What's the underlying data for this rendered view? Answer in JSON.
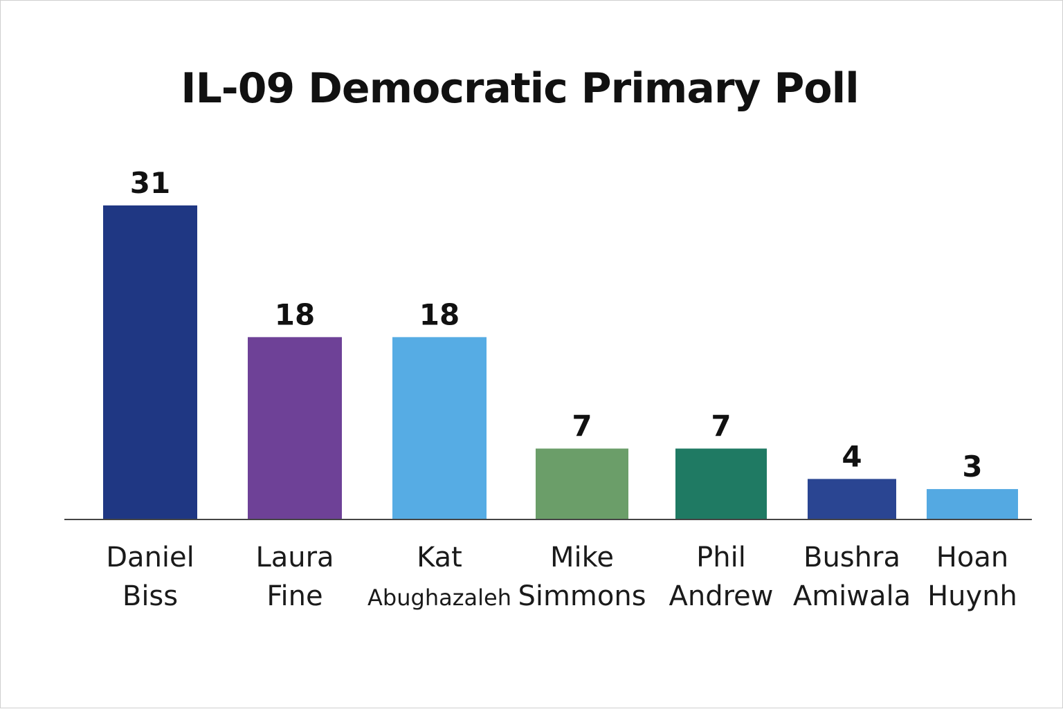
{
  "chart_data": {
    "type": "bar",
    "title": "IL-09 Democratic Primary Poll",
    "xlabel": "",
    "ylabel": "",
    "ylim": [
      0,
      31
    ],
    "grid": false,
    "legend": "none",
    "categories": [
      [
        "Daniel",
        "Biss"
      ],
      [
        "Laura",
        "Fine"
      ],
      [
        "Kat",
        "Abughazaleh"
      ],
      [
        "Mike",
        "Simmons"
      ],
      [
        "Phil",
        "Andrew"
      ],
      [
        "Bushra",
        "Amiwala"
      ],
      [
        "Hoan",
        "Huynh"
      ]
    ],
    "values": [
      31,
      18,
      18,
      7,
      7,
      4,
      3
    ],
    "colors": [
      "#1f3783",
      "#6e4197",
      "#56ace4",
      "#6b9e69",
      "#1f7a63",
      "#2a4592",
      "#54a9e2"
    ]
  }
}
